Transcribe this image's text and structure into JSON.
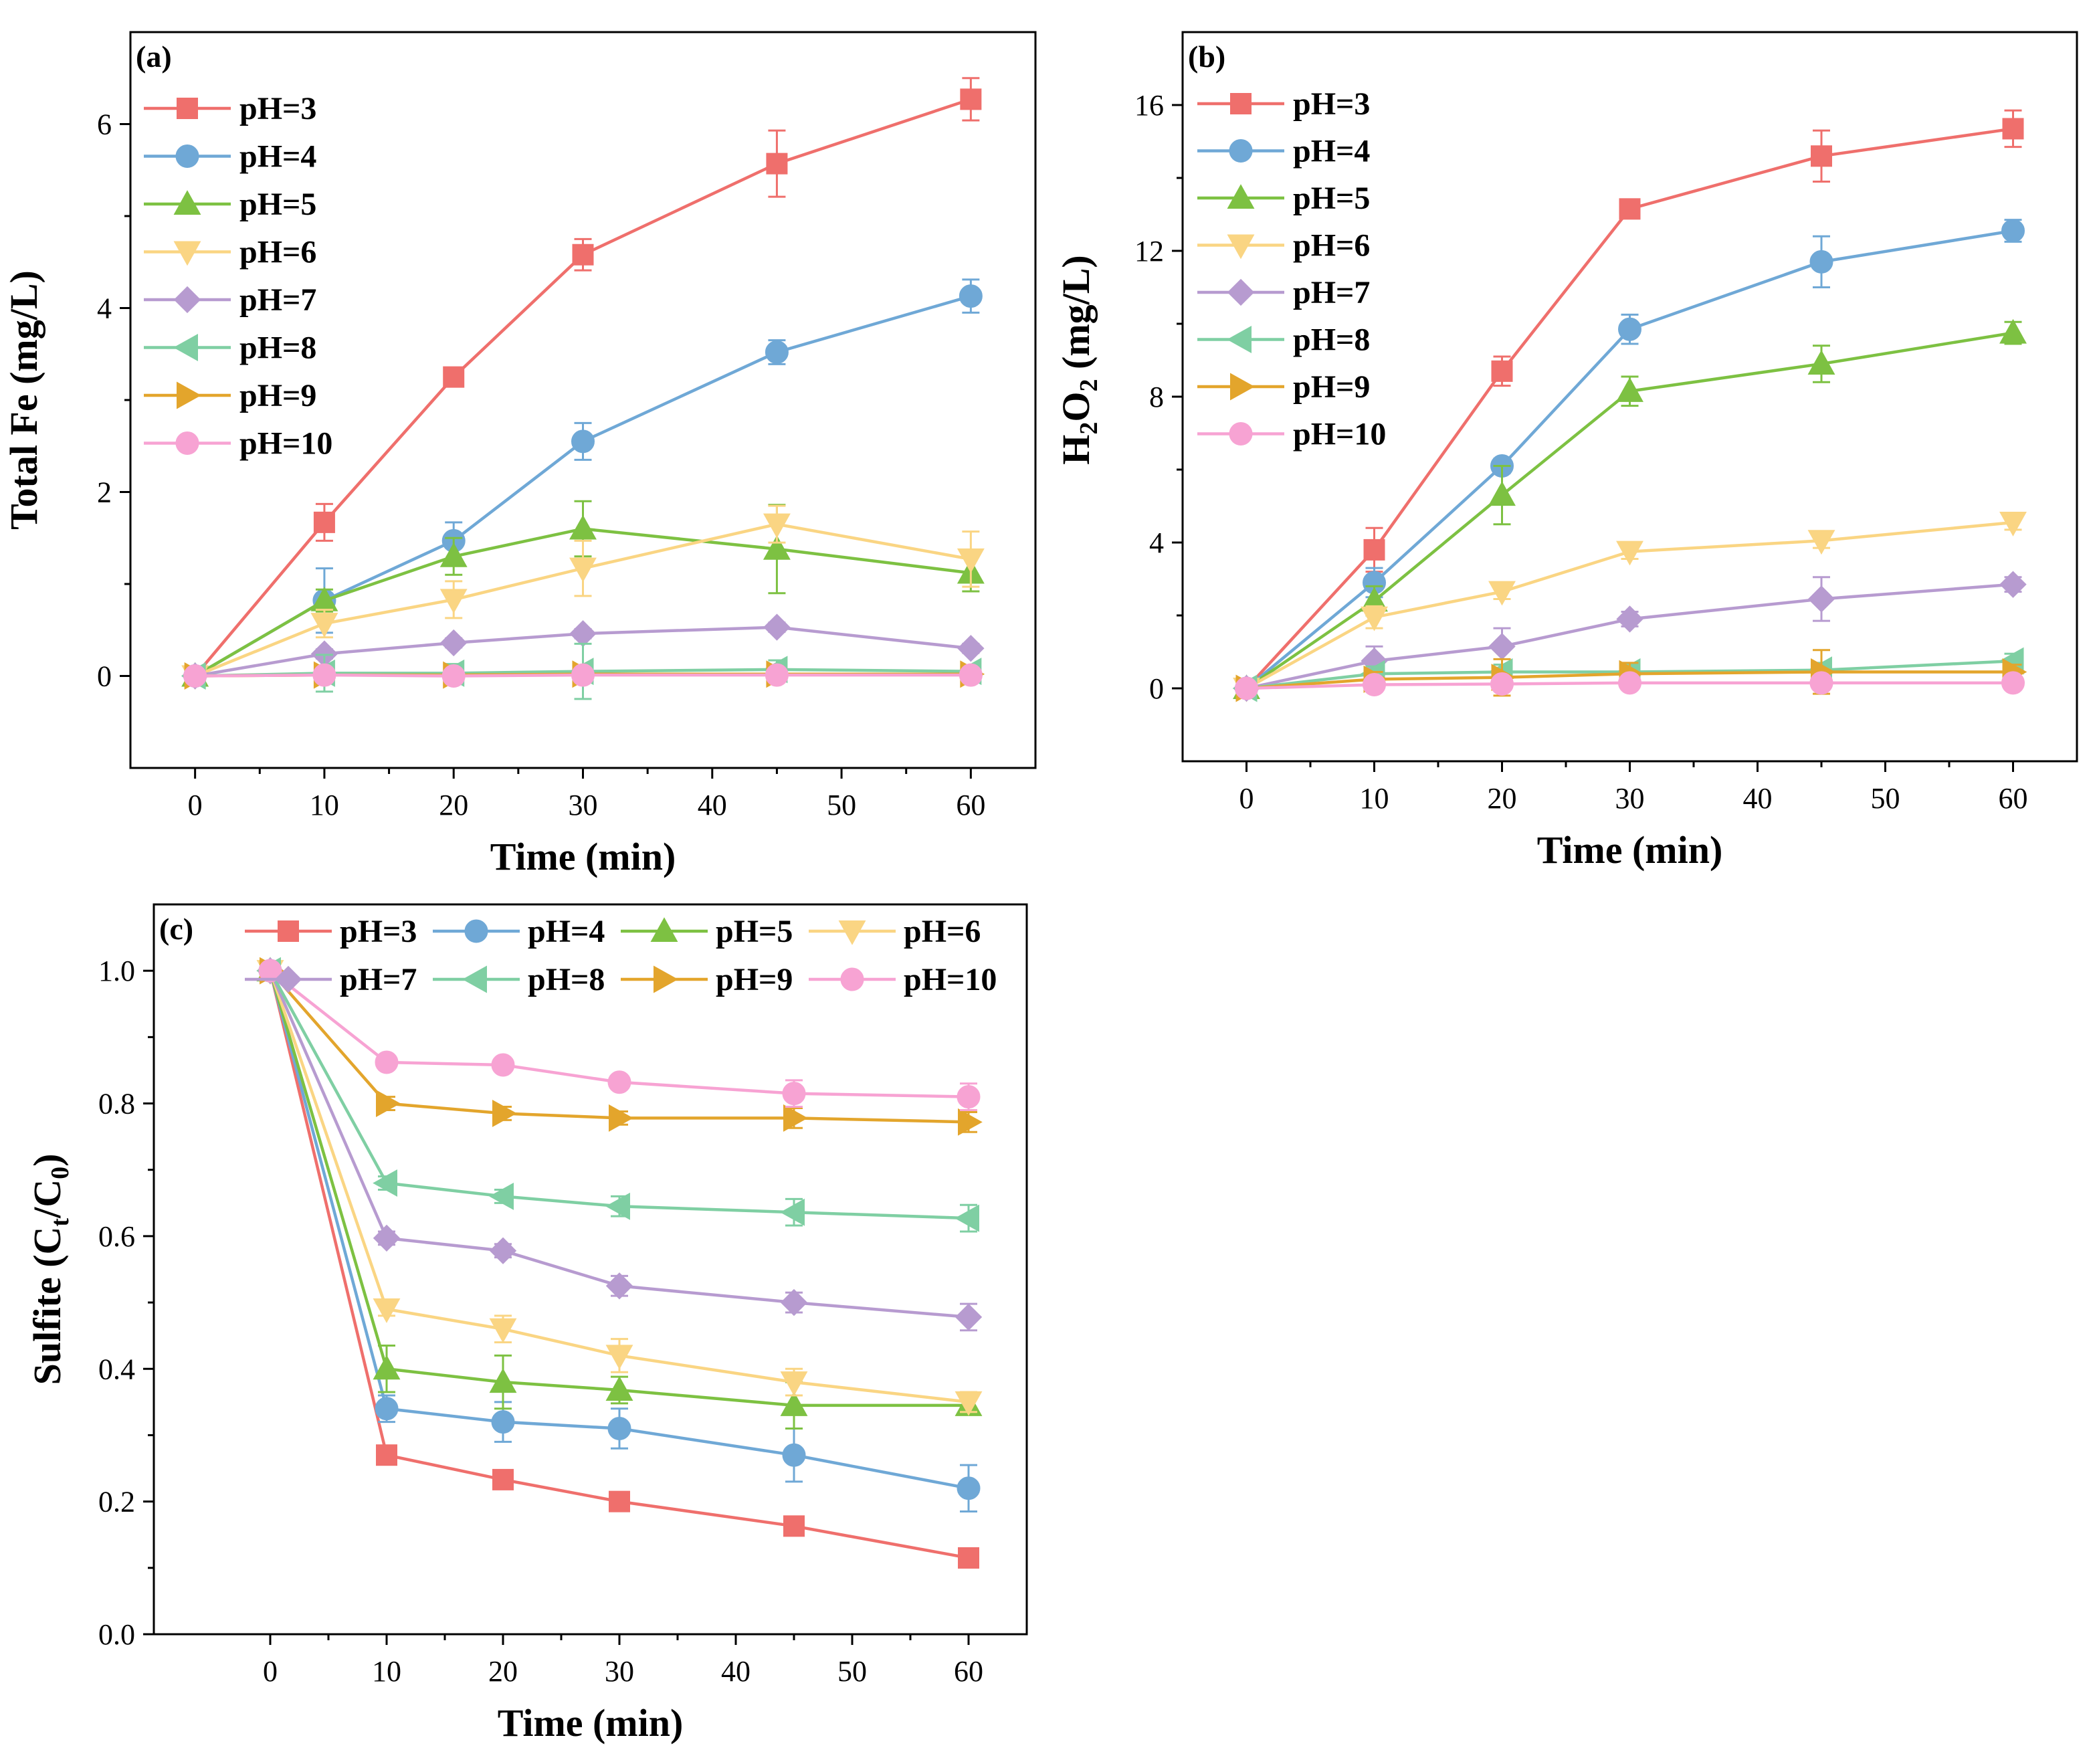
{
  "chart_data": [
    {
      "type": "line",
      "panel_label": "(a)",
      "xlabel": "Time (min)",
      "ylabel": "Total Fe (mg/L)",
      "xlim": [
        -5,
        65
      ],
      "ylim": [
        -1,
        7
      ],
      "xticks": [
        0,
        10,
        20,
        30,
        40,
        50,
        60
      ],
      "yticks": [
        0,
        2,
        4,
        6
      ],
      "grid": false,
      "legend": "top-left, single column",
      "x": [
        0,
        10,
        20,
        30,
        45,
        60
      ],
      "series": [
        {
          "name": "pH=3",
          "marker": "square",
          "color": "#EF6F6C",
          "values": [
            0,
            1.67,
            3.25,
            4.58,
            5.57,
            6.27
          ],
          "errors": [
            0.05,
            0.2,
            0.08,
            0.17,
            0.36,
            0.23
          ]
        },
        {
          "name": "pH=4",
          "marker": "circle",
          "color": "#6FA8D6",
          "values": [
            0,
            0.82,
            1.47,
            2.55,
            3.52,
            4.13
          ],
          "errors": [
            0.05,
            0.35,
            0.2,
            0.2,
            0.13,
            0.18
          ]
        },
        {
          "name": "pH=5",
          "marker": "triangle-up",
          "color": "#7DC142",
          "values": [
            0,
            0.82,
            1.3,
            1.6,
            1.38,
            1.12
          ],
          "errors": [
            0.05,
            0.12,
            0.2,
            0.3,
            0.48,
            0.2
          ]
        },
        {
          "name": "pH=6",
          "marker": "triangle-down",
          "color": "#FAD583",
          "values": [
            0,
            0.57,
            0.83,
            1.17,
            1.65,
            1.27
          ],
          "errors": [
            0.05,
            0.15,
            0.2,
            0.3,
            0.2,
            0.3
          ]
        },
        {
          "name": "pH=7",
          "marker": "diamond",
          "color": "#B79BD0",
          "values": [
            0,
            0.24,
            0.36,
            0.46,
            0.53,
            0.3
          ],
          "errors": [
            0.05,
            0.05,
            0.05,
            0.05,
            0.05,
            0.05
          ]
        },
        {
          "name": "pH=8",
          "marker": "triangle-left",
          "color": "#7FCFA3",
          "values": [
            0,
            0.03,
            0.03,
            0.05,
            0.07,
            0.05
          ],
          "errors": [
            0.05,
            0.2,
            0.1,
            0.3,
            0.1,
            0.05
          ]
        },
        {
          "name": "pH=9",
          "marker": "triangle-right",
          "color": "#E3A52C",
          "values": [
            0,
            0.01,
            0.01,
            0.02,
            0.02,
            0.02
          ],
          "errors": [
            0.05,
            0.05,
            0.05,
            0.05,
            0.05,
            0.05
          ]
        },
        {
          "name": "pH=10",
          "marker": "circle",
          "color": "#F7A3D3",
          "values": [
            0,
            0.01,
            0.0,
            0.01,
            0.01,
            0.01
          ],
          "errors": [
            0.05,
            0.05,
            0.05,
            0.05,
            0.05,
            0.05
          ]
        }
      ]
    },
    {
      "type": "line",
      "panel_label": "(b)",
      "xlabel": "Time (min)",
      "ylabel": "H2O2 (mg/L)",
      "ylabel_parts": [
        "H",
        "2",
        "O",
        "2",
        " (mg/L)"
      ],
      "xlim": [
        -5,
        65
      ],
      "ylim": [
        -2,
        18
      ],
      "xticks": [
        0,
        10,
        20,
        30,
        40,
        50,
        60
      ],
      "yticks": [
        0,
        4,
        8,
        12,
        16
      ],
      "grid": false,
      "legend": "top-left, single column",
      "x": [
        0,
        10,
        20,
        30,
        45,
        60
      ],
      "series": [
        {
          "name": "pH=3",
          "marker": "square",
          "color": "#EF6F6C",
          "values": [
            0,
            3.8,
            8.7,
            13.15,
            14.6,
            15.35
          ],
          "errors": [
            0.1,
            0.6,
            0.4,
            0.1,
            0.7,
            0.5
          ]
        },
        {
          "name": "pH=4",
          "marker": "circle",
          "color": "#6FA8D6",
          "values": [
            0,
            2.9,
            6.1,
            9.85,
            11.7,
            12.55
          ],
          "errors": [
            0.1,
            0.4,
            0.2,
            0.4,
            0.7,
            0.3
          ]
        },
        {
          "name": "pH=5",
          "marker": "triangle-up",
          "color": "#7DC142",
          "values": [
            0,
            2.4,
            5.3,
            8.15,
            8.9,
            9.75
          ],
          "errors": [
            0.1,
            0.4,
            0.8,
            0.4,
            0.5,
            0.3
          ]
        },
        {
          "name": "pH=6",
          "marker": "triangle-down",
          "color": "#FAD583",
          "values": [
            0,
            1.95,
            2.65,
            3.75,
            4.05,
            4.55
          ],
          "errors": [
            0.1,
            0.3,
            0.2,
            0.2,
            0.2,
            0.2
          ]
        },
        {
          "name": "pH=7",
          "marker": "diamond",
          "color": "#B79BD0",
          "values": [
            0,
            0.75,
            1.15,
            1.9,
            2.45,
            2.85
          ],
          "errors": [
            0.1,
            0.4,
            0.5,
            0.2,
            0.6,
            0.2
          ]
        },
        {
          "name": "pH=8",
          "marker": "triangle-left",
          "color": "#7FCFA3",
          "values": [
            0,
            0.4,
            0.45,
            0.45,
            0.5,
            0.75
          ],
          "errors": [
            0.1,
            0.2,
            0.2,
            0.2,
            0.2,
            0.2
          ]
        },
        {
          "name": "pH=9",
          "marker": "triangle-right",
          "color": "#E3A52C",
          "values": [
            0,
            0.25,
            0.3,
            0.4,
            0.45,
            0.45
          ],
          "errors": [
            0.1,
            0.2,
            0.5,
            0.3,
            0.6,
            0.2
          ]
        },
        {
          "name": "pH=10",
          "marker": "circle",
          "color": "#F7A3D3",
          "values": [
            0,
            0.1,
            0.12,
            0.15,
            0.15,
            0.15
          ],
          "errors": [
            0.1,
            0.1,
            0.1,
            0.1,
            0.1,
            0.1
          ]
        }
      ]
    },
    {
      "type": "line",
      "panel_label": "(c)",
      "xlabel": "Time (min)",
      "ylabel": "Sulfite (Ct/C0)",
      "ylabel_parts": [
        "Sulfite (C",
        "t",
        "/C",
        "0",
        ")"
      ],
      "xlim": [
        -10,
        65
      ],
      "ylim": [
        0,
        1.1
      ],
      "xticks": [
        0,
        10,
        20,
        30,
        40,
        50,
        60
      ],
      "yticks": [
        0.0,
        0.2,
        0.4,
        0.6,
        0.8,
        1.0
      ],
      "ytick_labels": [
        "0.0",
        "0.2",
        "0.4",
        "0.6",
        "0.8",
        "1.0"
      ],
      "grid": false,
      "legend": "top, two rows of four",
      "x": [
        0,
        10,
        20,
        30,
        45,
        60
      ],
      "series": [
        {
          "name": "pH=3",
          "marker": "square",
          "color": "#EF6F6C",
          "values": [
            1.0,
            0.27,
            0.233,
            0.2,
            0.163,
            0.115
          ],
          "errors": [
            0.005,
            0.01,
            0.01,
            0.01,
            0.01,
            0.01
          ]
        },
        {
          "name": "pH=4",
          "marker": "circle",
          "color": "#6FA8D6",
          "values": [
            1.0,
            0.34,
            0.32,
            0.31,
            0.27,
            0.22
          ],
          "errors": [
            0.005,
            0.02,
            0.03,
            0.03,
            0.04,
            0.035
          ]
        },
        {
          "name": "pH=5",
          "marker": "triangle-up",
          "color": "#7DC142",
          "values": [
            1.0,
            0.4,
            0.38,
            0.368,
            0.345,
            0.345
          ],
          "errors": [
            0.005,
            0.035,
            0.04,
            0.02,
            0.035,
            0.01
          ]
        },
        {
          "name": "pH=6",
          "marker": "triangle-down",
          "color": "#FAD583",
          "values": [
            1.0,
            0.49,
            0.46,
            0.42,
            0.38,
            0.35
          ],
          "errors": [
            0.005,
            0.01,
            0.02,
            0.025,
            0.02,
            0.015
          ]
        },
        {
          "name": "pH=7",
          "marker": "diamond",
          "color": "#B79BD0",
          "values": [
            1.0,
            0.597,
            0.578,
            0.525,
            0.5,
            0.478
          ],
          "errors": [
            0.005,
            0.01,
            0.01,
            0.015,
            0.015,
            0.02
          ]
        },
        {
          "name": "pH=8",
          "marker": "triangle-left",
          "color": "#7FCFA3",
          "values": [
            1.0,
            0.68,
            0.66,
            0.645,
            0.636,
            0.627
          ],
          "errors": [
            0.005,
            0.01,
            0.01,
            0.015,
            0.02,
            0.02
          ]
        },
        {
          "name": "pH=9",
          "marker": "triangle-right",
          "color": "#E3A52C",
          "values": [
            1.0,
            0.8,
            0.785,
            0.778,
            0.778,
            0.772
          ],
          "errors": [
            0.005,
            0.01,
            0.01,
            0.01,
            0.015,
            0.015
          ]
        },
        {
          "name": "pH=10",
          "marker": "circle",
          "color": "#F7A3D3",
          "values": [
            1.0,
            0.862,
            0.858,
            0.832,
            0.815,
            0.81
          ],
          "errors": [
            0.005,
            0.01,
            0.01,
            0.01,
            0.02,
            0.02
          ]
        }
      ]
    }
  ]
}
